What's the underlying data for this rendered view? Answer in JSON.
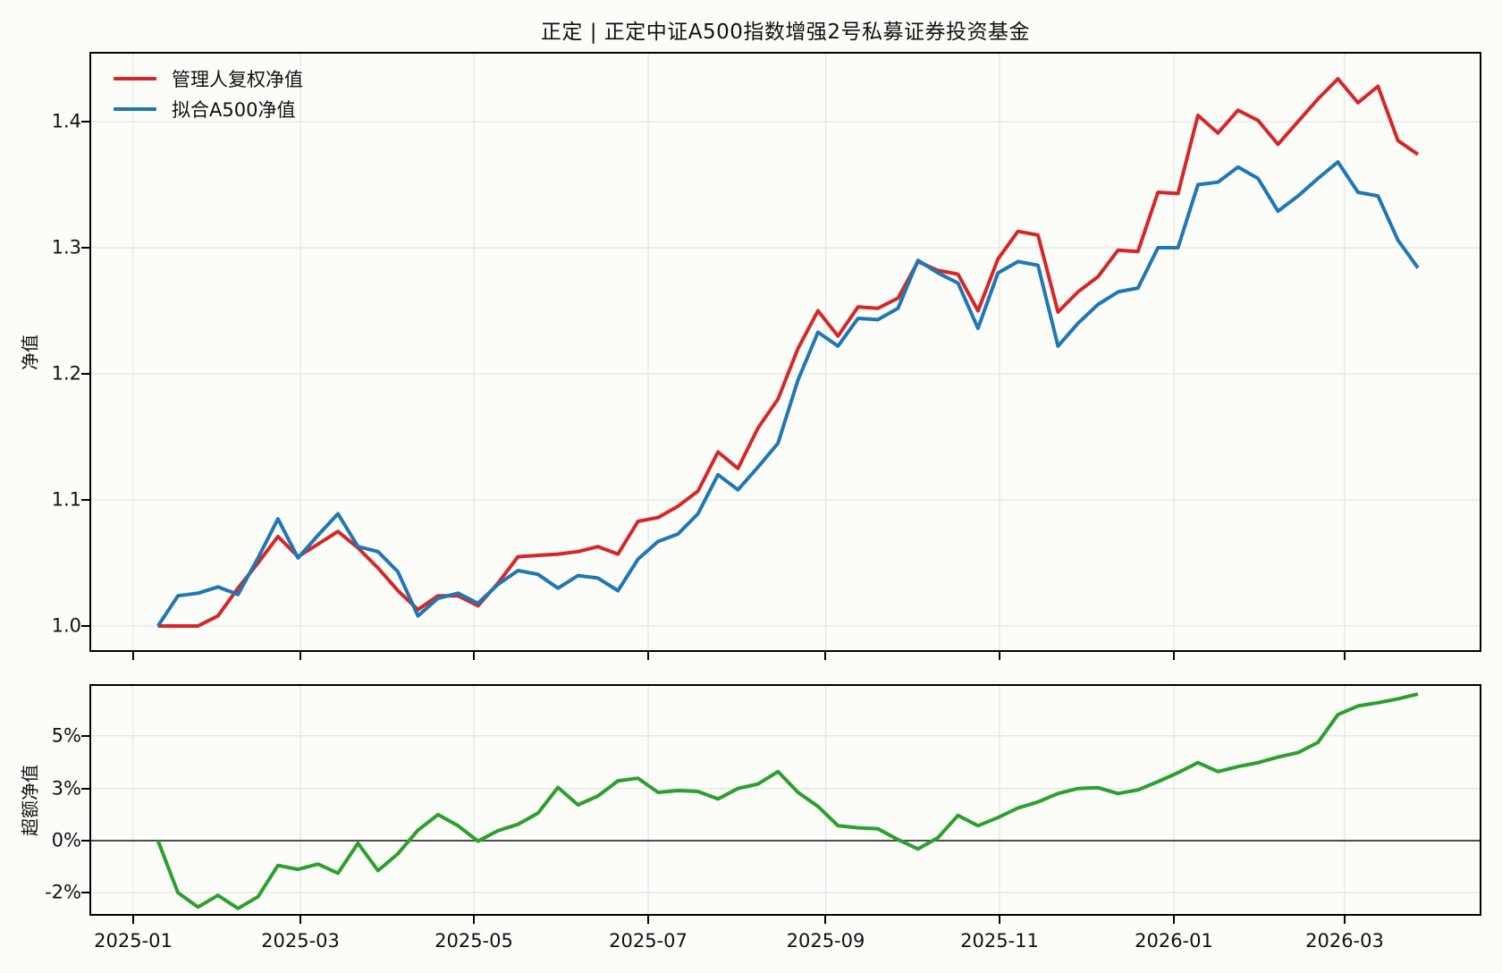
{
  "title": "正定 | 正定中证A500指数增强2号私募证券投资基金",
  "colors": {
    "manager_nav": "#d62728",
    "fitted_index": "#1f77b4",
    "excess": "#2ca02c",
    "grid": "#e8e8e8",
    "zero_line": "#4d4d4d",
    "spine": "#000000",
    "background": "#fcfcf9"
  },
  "chart_data": [
    {
      "type": "line",
      "panel": "nav",
      "ylabel": "净值",
      "grid": true,
      "legend_position": "upper-left",
      "ylim": [
        0.979,
        1.455
      ],
      "yticks": {
        "values": [
          1.0,
          1.1,
          1.2,
          1.3,
          1.4
        ],
        "labels": [
          "1.0",
          "1.1",
          "1.2",
          "1.3",
          "1.4"
        ]
      },
      "xtick_labels": [
        "2025-01",
        "2025-03",
        "2025-05",
        "2025-07",
        "2025-09",
        "2025-11",
        "2026-01",
        "2026-03"
      ],
      "x": [
        "2025-01-10",
        "2025-01-17",
        "2025-01-24",
        "2025-01-31",
        "2025-02-07",
        "2025-02-14",
        "2025-02-21",
        "2025-02-28",
        "2025-03-07",
        "2025-03-14",
        "2025-03-21",
        "2025-03-28",
        "2025-04-04",
        "2025-04-11",
        "2025-04-18",
        "2025-04-25",
        "2025-05-02",
        "2025-05-09",
        "2025-05-16",
        "2025-05-23",
        "2025-05-30",
        "2025-06-06",
        "2025-06-13",
        "2025-06-20",
        "2025-06-27",
        "2025-07-04",
        "2025-07-11",
        "2025-07-18",
        "2025-07-25",
        "2025-08-01",
        "2025-08-08",
        "2025-08-15",
        "2025-08-22",
        "2025-08-29",
        "2025-09-05",
        "2025-09-12",
        "2025-09-19",
        "2025-09-26",
        "2025-10-03",
        "2025-10-10",
        "2025-10-17",
        "2025-10-24",
        "2025-10-31",
        "2025-11-07",
        "2025-11-14",
        "2025-11-21",
        "2025-11-28",
        "2025-12-05",
        "2025-12-12",
        "2025-12-19",
        "2025-12-26",
        "2026-01-02",
        "2026-01-09",
        "2026-01-16",
        "2026-01-23",
        "2026-01-30",
        "2026-02-06",
        "2026-02-13",
        "2026-02-20",
        "2026-02-27",
        "2026-03-06",
        "2026-03-13",
        "2026-03-20",
        "2026-03-27"
      ],
      "series": [
        {
          "name": "管理人复权净值",
          "color_key": "manager_nav",
          "values": [
            1.0,
            1.0,
            1.0,
            1.008,
            1.03,
            1.05,
            1.071,
            1.055,
            1.065,
            1.075,
            1.062,
            1.046,
            1.028,
            1.013,
            1.024,
            1.024,
            1.016,
            1.034,
            1.055,
            1.056,
            1.057,
            1.059,
            1.063,
            1.057,
            1.083,
            1.086,
            1.095,
            1.107,
            1.138,
            1.125,
            1.157,
            1.18,
            1.22,
            1.25,
            1.23,
            1.253,
            1.252,
            1.26,
            1.289,
            1.282,
            1.279,
            1.25,
            1.291,
            1.313,
            1.31,
            1.249,
            1.265,
            1.277,
            1.298,
            1.297,
            1.344,
            1.343,
            1.405,
            1.391,
            1.409,
            1.401,
            1.382,
            1.4,
            1.418,
            1.434,
            1.415,
            1.428,
            1.385,
            1.374
          ]
        },
        {
          "name": "拟合A500净值",
          "color_key": "fitted_index",
          "values": [
            1.0,
            1.024,
            1.026,
            1.031,
            1.025,
            1.054,
            1.085,
            1.054,
            1.072,
            1.089,
            1.063,
            1.059,
            1.043,
            1.008,
            1.022,
            1.026,
            1.018,
            1.033,
            1.044,
            1.041,
            1.03,
            1.04,
            1.038,
            1.028,
            1.053,
            1.067,
            1.073,
            1.089,
            1.12,
            1.108,
            1.126,
            1.145,
            1.195,
            1.233,
            1.222,
            1.244,
            1.243,
            1.252,
            1.29,
            1.28,
            1.272,
            1.236,
            1.28,
            1.289,
            1.286,
            1.222,
            1.24,
            1.255,
            1.265,
            1.268,
            1.3,
            1.3,
            1.35,
            1.352,
            1.364,
            1.355,
            1.329,
            1.341,
            1.355,
            1.368,
            1.344,
            1.341,
            1.306,
            1.284
          ]
        }
      ]
    },
    {
      "type": "line",
      "panel": "excess",
      "ylabel": "超额净值",
      "grid": true,
      "zero_line": true,
      "ylim": [
        -2.95,
        6.96
      ],
      "yticks": {
        "values": [
          5,
          3,
          0,
          -2
        ],
        "labels": [
          "5%",
          "3%",
          "0%",
          "-2%"
        ]
      },
      "xtick_labels": [
        "2025-01",
        "2025-03",
        "2025-05",
        "2025-07",
        "2025-09",
        "2025-11",
        "2026-01",
        "2026-03"
      ],
      "series": [
        {
          "name": "超额净值",
          "color_key": "excess",
          "unit": "%",
          "values": [
            0.0,
            -2.0,
            -2.55,
            -2.1,
            -2.6,
            -2.15,
            -0.95,
            -1.1,
            -0.9,
            -1.25,
            -0.1,
            -1.15,
            -0.5,
            0.6,
            1.5,
            0.86,
            -0.02,
            0.57,
            0.94,
            1.58,
            3.04,
            2.06,
            2.57,
            3.29,
            3.39,
            2.78,
            2.88,
            2.83,
            2.4,
            3.0,
            3.17,
            3.64,
            2.78,
            1.97,
            0.86,
            0.74,
            0.68,
            0.06,
            -0.32,
            0.17,
            1.45,
            0.86,
            1.33,
            1.88,
            2.23,
            2.71,
            3.0,
            3.03,
            2.71,
            2.92,
            3.26,
            3.6,
            3.98,
            3.64,
            3.83,
            3.98,
            4.19,
            4.36,
            4.75,
            5.8,
            6.13,
            6.25,
            6.4,
            6.58
          ]
        }
      ]
    }
  ]
}
